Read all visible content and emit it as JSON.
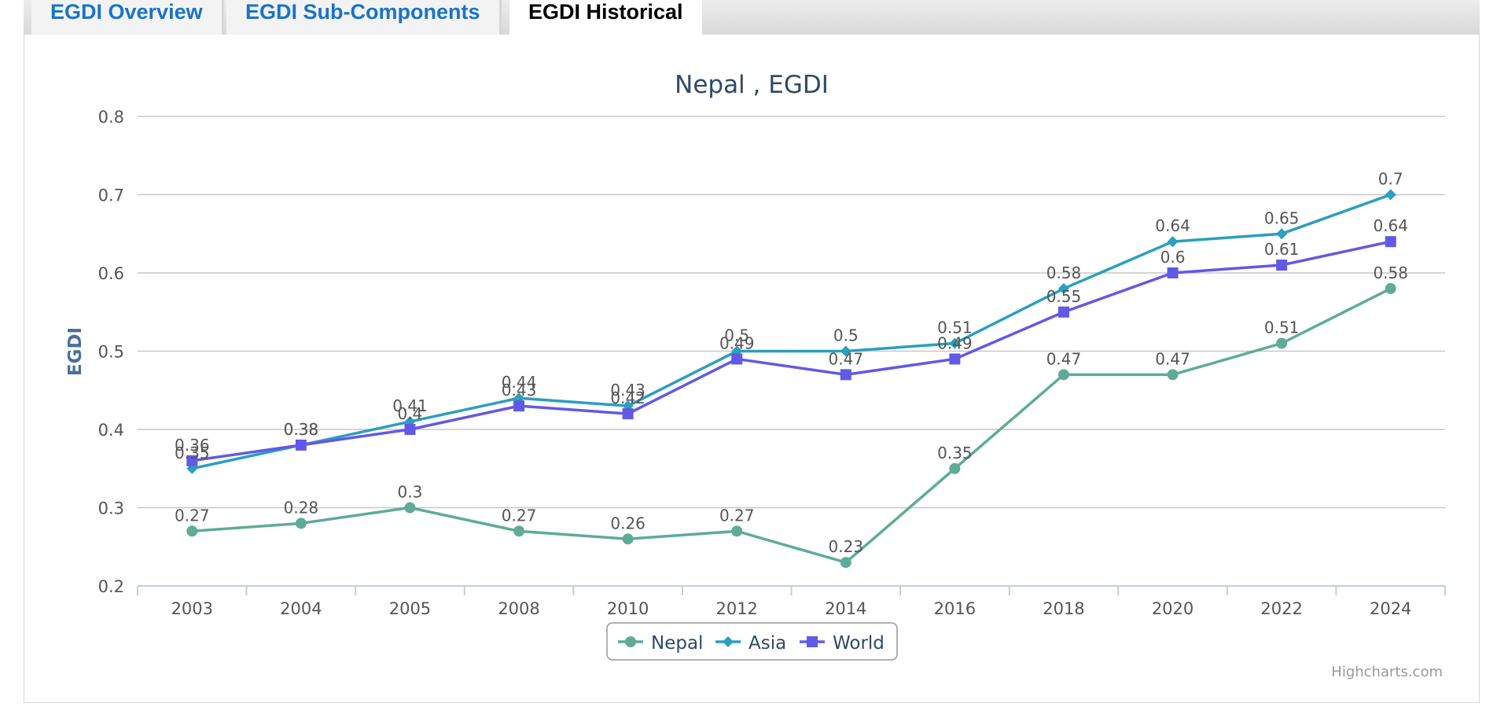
{
  "tabs": [
    {
      "label": "EGDI Overview",
      "active": false
    },
    {
      "label": "EGDI Sub-Components",
      "active": false
    },
    {
      "label": "EGDI Historical",
      "active": true
    }
  ],
  "credit": "Highcharts.com",
  "chart_data": {
    "type": "line",
    "title": "Nepal , EGDI",
    "xlabel": "",
    "ylabel": "EGDI",
    "ylim": [
      0.2,
      0.8
    ],
    "yticks": [
      0.2,
      0.3,
      0.4,
      0.5,
      0.6,
      0.7,
      0.8
    ],
    "categories": [
      "2003",
      "2004",
      "2005",
      "2008",
      "2010",
      "2012",
      "2014",
      "2016",
      "2018",
      "2020",
      "2022",
      "2024"
    ],
    "grid": true,
    "legend": "bottom-center",
    "series": [
      {
        "name": "Nepal",
        "color": "#5fab98",
        "marker": "circle",
        "values": [
          0.27,
          0.28,
          0.3,
          0.27,
          0.26,
          0.27,
          0.23,
          0.35,
          0.47,
          0.47,
          0.51,
          0.58
        ]
      },
      {
        "name": "Asia",
        "color": "#2b9fbd",
        "marker": "diamond",
        "values": [
          0.35,
          0.38,
          0.41,
          0.44,
          0.43,
          0.5,
          0.5,
          0.51,
          0.58,
          0.64,
          0.65,
          0.7
        ]
      },
      {
        "name": "World",
        "color": "#6159e6",
        "marker": "square",
        "values": [
          0.36,
          0.38,
          0.4,
          0.43,
          0.42,
          0.49,
          0.47,
          0.49,
          0.55,
          0.6,
          0.61,
          0.64
        ]
      }
    ]
  }
}
